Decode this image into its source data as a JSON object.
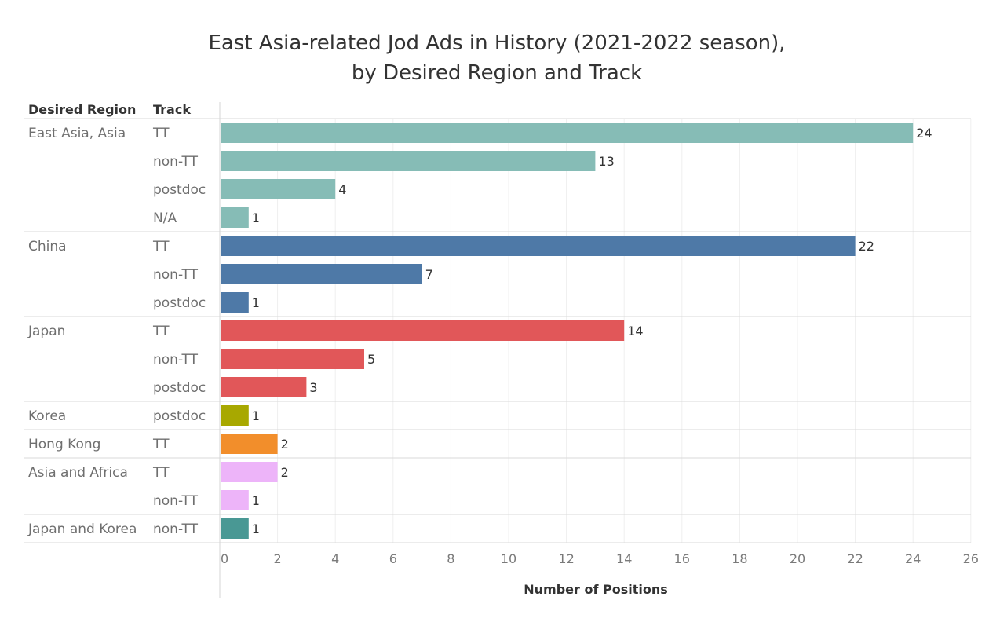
{
  "chart_data": {
    "type": "bar",
    "orientation": "horizontal",
    "title_line1": "East Asia-related Jod Ads in History (2021-2022 season),",
    "title_line2": "by Desired Region and Track",
    "header_region": "Desired Region",
    "header_track": "Track",
    "xlabel": "Number of Positions",
    "xlim": [
      0,
      26
    ],
    "xticks": [
      "0",
      "2",
      "4",
      "6",
      "8",
      "10",
      "12",
      "14",
      "16",
      "18",
      "20",
      "22",
      "24",
      "26"
    ],
    "grid": "vertical",
    "groups": [
      {
        "region": "East Asia, Asia",
        "color": "#86bcb6",
        "rows": [
          {
            "track": "TT",
            "value": 24
          },
          {
            "track": "non-TT",
            "value": 13
          },
          {
            "track": "postdoc",
            "value": 4
          },
          {
            "track": "N/A",
            "value": 1
          }
        ]
      },
      {
        "region": "China",
        "color": "#4e79a7",
        "rows": [
          {
            "track": "TT",
            "value": 22
          },
          {
            "track": "non-TT",
            "value": 7
          },
          {
            "track": "postdoc",
            "value": 1
          }
        ]
      },
      {
        "region": "Japan",
        "color": "#e15759",
        "rows": [
          {
            "track": "TT",
            "value": 14
          },
          {
            "track": "non-TT",
            "value": 5
          },
          {
            "track": "postdoc",
            "value": 3
          }
        ]
      },
      {
        "region": "Korea",
        "color": "#a8a800",
        "rows": [
          {
            "track": "postdoc",
            "value": 1
          }
        ]
      },
      {
        "region": "Hong Kong",
        "color": "#f28e2b",
        "rows": [
          {
            "track": "TT",
            "value": 2
          }
        ]
      },
      {
        "region": "Asia and Africa",
        "color": "#edb4f9",
        "rows": [
          {
            "track": "TT",
            "value": 2
          },
          {
            "track": "non-TT",
            "value": 1
          }
        ]
      },
      {
        "region": "Japan and Korea",
        "color": "#499894",
        "rows": [
          {
            "track": "non-TT",
            "value": 1
          }
        ]
      }
    ]
  }
}
